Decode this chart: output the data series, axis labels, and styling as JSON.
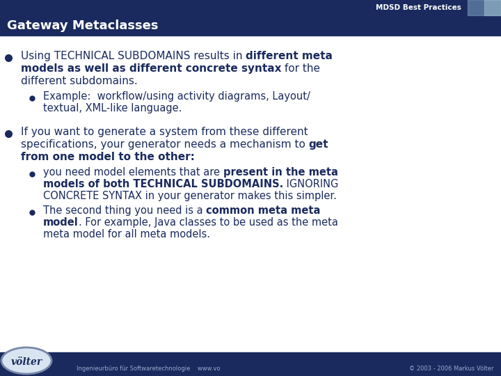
{
  "title": "Gateway Metaclasses",
  "header_label": "MDSD Best Practices",
  "bg_color": "#FFFFFF",
  "header_bg": "#1a2a5e",
  "header_text_color": "#FFFFFF",
  "footer_bg": "#1a2a5e",
  "footer_text": "Ingenieurbüro für Softwaretechnologie    www.vo",
  "footer_right": "© 2003 - 2006 Markus Völter",
  "footer_logo": "völter",
  "text_color": "#1a2a5e",
  "fs_main": 11,
  "fs_sub": 10.5,
  "fs_title": 13,
  "fs_header": 7.5,
  "fs_footer": 6
}
